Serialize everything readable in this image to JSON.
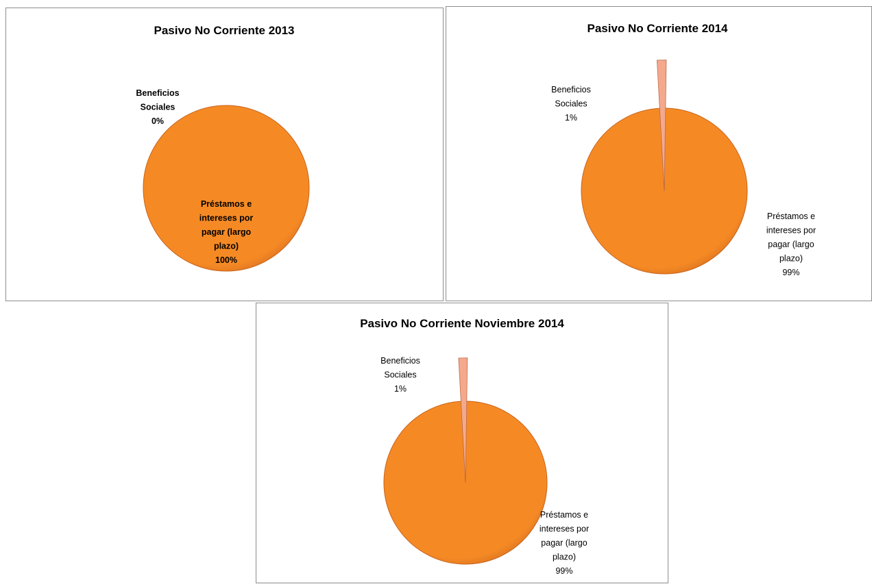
{
  "colors": {
    "main_slice": "#f58a25",
    "main_slice_dark": "#c8621a",
    "minor_slice": "#f5a98c",
    "minor_slice_edge": "#b86a4a",
    "border": "#8c8c8c"
  },
  "chart_data": [
    {
      "type": "pie",
      "title": "Pasivo No Corriente 2013",
      "slices": [
        {
          "label_lines": [
            "Beneficios",
            "Sociales",
            "0%"
          ],
          "value": 0,
          "percent_label": "0%"
        },
        {
          "label_lines": [
            "Préstamos e",
            "intereses por",
            "pagar (largo",
            "plazo)",
            "100%"
          ],
          "value": 100,
          "percent_label": "100%"
        }
      ],
      "labels_bold": true
    },
    {
      "type": "pie",
      "title": "Pasivo No Corriente 2014",
      "slices": [
        {
          "label_lines": [
            "Beneficios",
            "Sociales",
            "1%"
          ],
          "value": 1,
          "percent_label": "1%"
        },
        {
          "label_lines": [
            "Préstamos e",
            "intereses por",
            "pagar (largo",
            "plazo)",
            "99%"
          ],
          "value": 99,
          "percent_label": "99%"
        }
      ],
      "labels_bold": false
    },
    {
      "type": "pie",
      "title": "Pasivo No Corriente  Noviembre  2014",
      "slices": [
        {
          "label_lines": [
            "Beneficios",
            "Sociales",
            "1%"
          ],
          "value": 1,
          "percent_label": "1%"
        },
        {
          "label_lines": [
            "Préstamos e",
            "intereses por",
            "pagar (largo",
            "plazo)",
            "99%"
          ],
          "value": 99,
          "percent_label": "99%"
        }
      ],
      "labels_bold": false
    }
  ]
}
